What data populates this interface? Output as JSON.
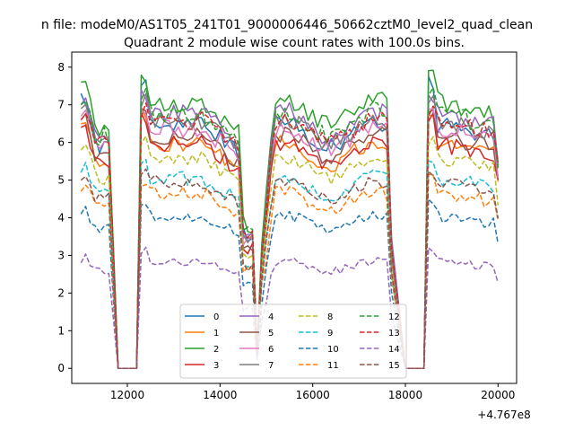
{
  "chart_data": {
    "type": "line",
    "suptitle": "n file: modeM0/AS1T05_241T01_9000006446_50662cztM0_level2_quad_clean",
    "title": "Quadrant 2 module wise count rates with 100.0s bins.",
    "xlabel": "",
    "ylabel": "",
    "x_offset_label": "+4.767e8",
    "xlim": [
      10800,
      20400
    ],
    "ylim": [
      -0.4,
      8.4
    ],
    "xticks": [
      12000,
      14000,
      16000,
      18000,
      20000
    ],
    "yticks": [
      0,
      1,
      2,
      3,
      4,
      5,
      6,
      7,
      8
    ],
    "segments": [
      [
        11000,
        11700
      ],
      [
        12300,
        14700
      ],
      [
        14900,
        17700
      ],
      [
        18500,
        20000
      ]
    ],
    "gap_x": [
      11800,
      11900,
      12000,
      12100,
      12200,
      18000,
      18100,
      18200,
      18300,
      18400
    ],
    "dip_x": 14800,
    "series": [
      {
        "name": "0",
        "color": "#1f77b4",
        "dash": "solid",
        "level": 6.4,
        "spike": 7.7
      },
      {
        "name": "1",
        "color": "#ff7f0e",
        "dash": "solid",
        "level": 5.9,
        "spike": 6.9
      },
      {
        "name": "2",
        "color": "#2ca02c",
        "dash": "solid",
        "level": 7.0,
        "spike": 8.0
      },
      {
        "name": "3",
        "color": "#d62728",
        "dash": "solid",
        "level": 5.9,
        "spike": 6.8
      },
      {
        "name": "4",
        "color": "#9467bd",
        "dash": "solid",
        "level": 6.7,
        "spike": 7.4
      },
      {
        "name": "5",
        "color": "#8c564b",
        "dash": "solid",
        "level": 6.1,
        "spike": 7.0
      },
      {
        "name": "6",
        "color": "#e377c2",
        "dash": "solid",
        "level": 6.3,
        "spike": 7.1
      },
      {
        "name": "7",
        "color": "#7f7f7f",
        "dash": "solid",
        "level": 6.5,
        "spike": 7.3
      },
      {
        "name": "8",
        "color": "#bcbd22",
        "dash": "dashed",
        "level": 5.5,
        "spike": 6.2
      },
      {
        "name": "9",
        "color": "#17becf",
        "dash": "dashed",
        "level": 5.0,
        "spike": 5.6
      },
      {
        "name": "10",
        "color": "#1f77b4",
        "dash": "dashed",
        "level": 4.0,
        "spike": 4.5
      },
      {
        "name": "11",
        "color": "#ff7f0e",
        "dash": "dashed",
        "level": 4.6,
        "spike": 5.1
      },
      {
        "name": "12",
        "color": "#2ca02c",
        "dash": "dashed",
        "level": 6.7,
        "spike": 7.4
      },
      {
        "name": "13",
        "color": "#d62728",
        "dash": "dashed",
        "level": 6.5,
        "spike": 7.0
      },
      {
        "name": "14",
        "color": "#9467bd",
        "dash": "dashed",
        "level": 2.8,
        "spike": 3.2
      },
      {
        "name": "15",
        "color": "#8c564b",
        "dash": "dashed",
        "level": 4.9,
        "spike": 5.4
      }
    ],
    "legend_location": "lower center",
    "grid": false
  }
}
